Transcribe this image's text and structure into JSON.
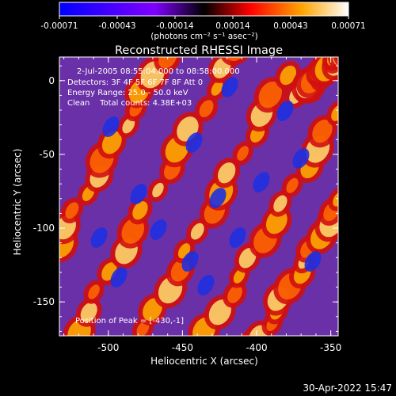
{
  "colorbar": {
    "tick_labels": [
      "-0.00071",
      "-0.00043",
      "-0.00014",
      "0.00014",
      "0.00043",
      "0.00071"
    ],
    "units_label": "(photons cm⁻² s⁻¹ asec⁻²)"
  },
  "plot": {
    "title": "Reconstructed RHESSI Image",
    "info_lines": [
      "2-Jul-2005 08:55:04.000 to 08:58:00.000",
      "Detectors: 3F 4F 5F 6F 7F 8F Att 0",
      "Energy Range: 25.0 - 50.0 keV",
      "Clean    Total counts: 4.38E+03"
    ],
    "peak_label": "Position of Peak = [-430,-1]",
    "xlabel": "Heliocentric X (arcsec)",
    "ylabel": "Heliocentric Y (arcsec)",
    "x_ticks": [
      "-500",
      "-450",
      "-400",
      "-350"
    ],
    "y_ticks": [
      "0",
      "-50",
      "-100",
      "-150"
    ],
    "xlim": [
      -533,
      -345
    ],
    "ylim": [
      -173,
      16
    ]
  },
  "footer": {
    "timestamp": "30-Apr-2022 15:47"
  },
  "colors": {
    "background": "#000000",
    "text": "#ffffff"
  }
}
